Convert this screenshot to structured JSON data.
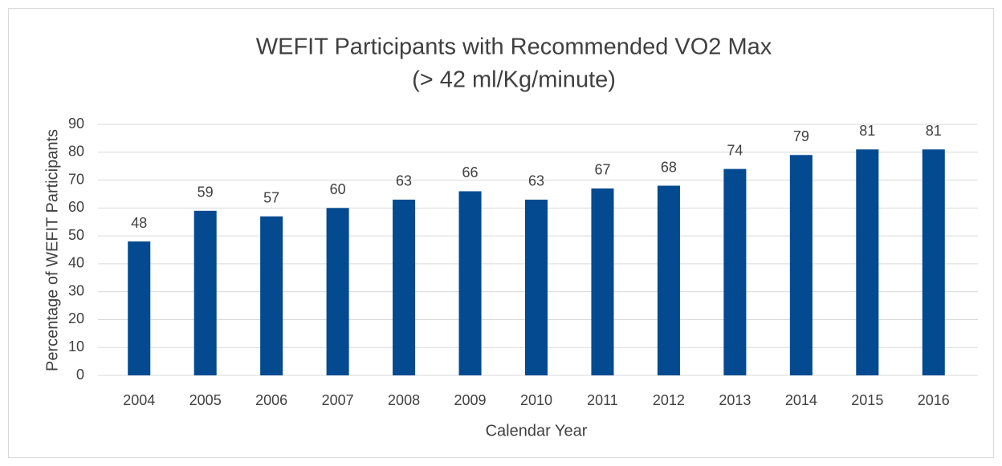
{
  "chart_data": {
    "type": "bar",
    "title": "WEFIT Participants with Recommended VO2 Max",
    "subtitle": "(> 42 ml/Kg/minute)",
    "x_label": "Calendar Year",
    "y_label": "Percentage of WEFIT Participants",
    "categories": [
      "2004",
      "2005",
      "2006",
      "2007",
      "2008",
      "2009",
      "2010",
      "2011",
      "2012",
      "2013",
      "2014",
      "2015",
      "2016"
    ],
    "values": [
      48,
      59,
      57,
      60,
      63,
      66,
      63,
      67,
      68,
      74,
      79,
      81,
      81
    ],
    "color": "#034a90",
    "ylim": [
      0,
      90
    ],
    "yticks": [
      0,
      10,
      20,
      30,
      40,
      50,
      60,
      70,
      80,
      90
    ],
    "grid": true
  }
}
